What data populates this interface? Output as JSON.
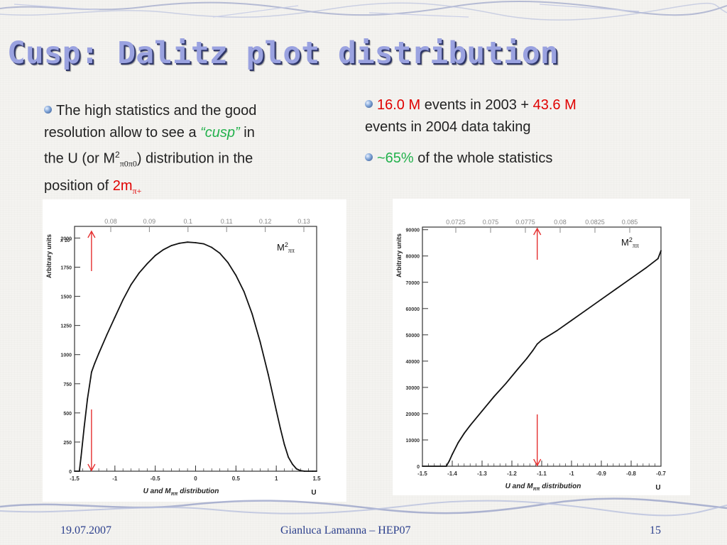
{
  "slide": {
    "title": "Cusp: Dalitz plot distribution",
    "page_number": "15",
    "date": "19.07.2007",
    "author_event": "Gianluca Lamanna – HEP07"
  },
  "left_text": {
    "line1": "The high statistics and the good",
    "line2_prefix": "resolution allow to see a ",
    "cusp_word": "“cusp”",
    "line2_suffix": " in",
    "line3_a": "the U (or M",
    "line3_sup": "2",
    "line3_sub": "π0π0",
    "line3_b": ") distribution in the",
    "line4_a": "position of ",
    "line4_red": "2m",
    "line4_sub": "π+"
  },
  "right_text": {
    "b1_value1": "16.0 M",
    "b1_mid": " events in 2003 + ",
    "b1_value2": "43.6 M",
    "b1_line2": "events in 2004 data taking",
    "b2_value": "~65%",
    "b2_rest": " of the whole statistics"
  },
  "colors": {
    "title": "#9aa2e0",
    "accent_red": "#e00000",
    "accent_green": "#22b14c",
    "footer": "#2b3f8c"
  },
  "chart_data": [
    {
      "type": "line",
      "xlabel": "U and Mππ distribution",
      "xlabel_main": "U and M",
      "xlabel_sub": "ππ",
      "xlabel_tail": " distribution",
      "axis_unit_label": "U",
      "ylabel": "Arbitrary units",
      "y_multiplier": "x 10²",
      "xlim": [
        -1.5,
        1.5
      ],
      "ylim": [
        0,
        2100
      ],
      "x_ticks": [
        "-1.5",
        "-1",
        "-0.5",
        "0",
        "0.5",
        "1",
        "1.5"
      ],
      "y_ticks": [
        "0",
        "250",
        "500",
        "750",
        "1000",
        "1250",
        "1500",
        "1750",
        "2000"
      ],
      "top_axis_ticks": [
        "0.08",
        "0.09",
        "0.1",
        "0.11",
        "0.12",
        "0.13"
      ],
      "annotation": {
        "text": "M",
        "sup": "2",
        "sub": "ππ"
      },
      "cusp_marker_x": -1.29,
      "series": [
        {
          "x": [
            -1.5,
            -1.44,
            -1.42,
            -1.38,
            -1.34,
            -1.3,
            -1.29,
            -1.25,
            -1.2,
            -1.1,
            -1.0,
            -0.9,
            -0.8,
            -0.7,
            -0.6,
            -0.5,
            -0.4,
            -0.3,
            -0.2,
            -0.1,
            0.0,
            0.1,
            0.2,
            0.3,
            0.4,
            0.5,
            0.6,
            0.7,
            0.8,
            0.9,
            1.0,
            1.05,
            1.1,
            1.15,
            1.2,
            1.25,
            1.3,
            1.35,
            1.4,
            1.45,
            1.5
          ],
          "y": [
            0,
            0,
            120,
            380,
            620,
            800,
            850,
            925,
            1010,
            1170,
            1320,
            1470,
            1600,
            1700,
            1780,
            1850,
            1900,
            1935,
            1955,
            1965,
            1960,
            1950,
            1920,
            1870,
            1790,
            1680,
            1540,
            1350,
            1110,
            830,
            520,
            370,
            230,
            120,
            60,
            20,
            5,
            0,
            0,
            0,
            0
          ]
        }
      ]
    },
    {
      "type": "line",
      "xlabel": "U and Mππ distribution",
      "xlabel_main": "U and M",
      "xlabel_sub": "ππ",
      "xlabel_tail": " distribution",
      "axis_unit_label": "U",
      "ylabel": "Arbitrary units",
      "xlim": [
        -1.5,
        -0.7
      ],
      "ylim": [
        0,
        91000
      ],
      "x_ticks": [
        "-1.5",
        "-1.4",
        "-1.3",
        "-1.2",
        "-1.1",
        "-1",
        "-0.9",
        "-0.8",
        "-0.7"
      ],
      "y_ticks": [
        "0",
        "10000",
        "20000",
        "30000",
        "40000",
        "50000",
        "60000",
        "70000",
        "80000",
        "90000"
      ],
      "top_axis_ticks": [
        "0.0725",
        "0.075",
        "0.0775",
        "0.08",
        "0.0825",
        "0.085"
      ],
      "annotation": {
        "text": "M",
        "sup": "2",
        "sub": "ππ"
      },
      "cusp_marker_x": -1.115,
      "series": [
        {
          "x": [
            -1.5,
            -1.42,
            -1.41,
            -1.4,
            -1.38,
            -1.36,
            -1.34,
            -1.3,
            -1.26,
            -1.22,
            -1.18,
            -1.15,
            -1.13,
            -1.115,
            -1.1,
            -1.05,
            -1.0,
            -0.95,
            -0.9,
            -0.85,
            -0.8,
            -0.75,
            -0.71,
            -0.7
          ],
          "y": [
            0,
            0,
            2000,
            4500,
            9000,
            12500,
            15500,
            21000,
            26500,
            31500,
            37000,
            41000,
            44000,
            46500,
            48000,
            51500,
            55500,
            59500,
            63500,
            67500,
            71500,
            75500,
            79000,
            82000
          ]
        }
      ]
    }
  ]
}
